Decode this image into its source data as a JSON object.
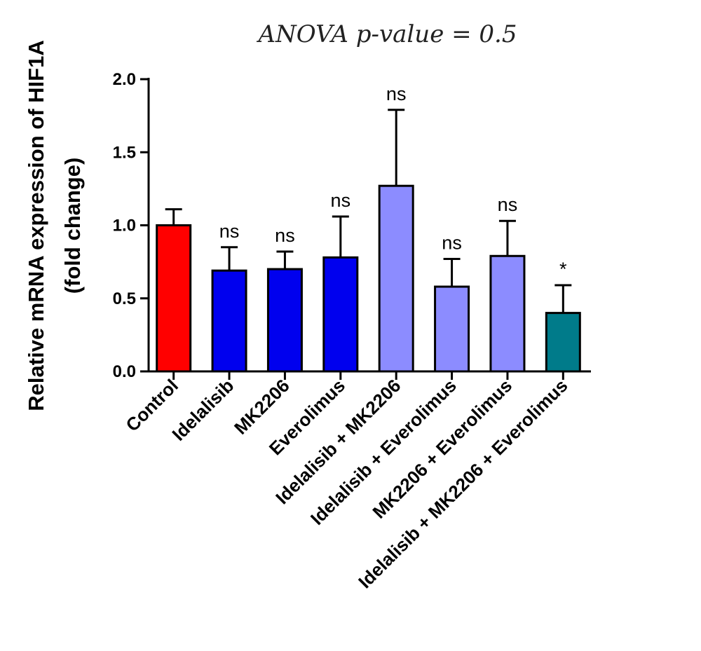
{
  "chart_data": {
    "type": "bar",
    "title": "ANOVA p-value = 0.5",
    "ylabel_line1": "Relative mRNA expression of HIF1A",
    "ylabel_line2": "(fold change)",
    "xlabel": "",
    "ylim": [
      0,
      2.0
    ],
    "yticks": [
      "0.0",
      "0.5",
      "1.0",
      "1.5",
      "2.0"
    ],
    "categories": [
      "Control",
      "Idelalisib",
      "MK2206",
      "Everolimus",
      "Idelalisib + MK2206",
      "Idelalisib + Everolimus",
      "MK2206 + Everolimus",
      "Idelalisib + MK2206 + Everolimus"
    ],
    "values": [
      1.0,
      0.69,
      0.7,
      0.78,
      1.27,
      0.58,
      0.79,
      0.4
    ],
    "error_upper": [
      0.11,
      0.16,
      0.12,
      0.28,
      0.52,
      0.19,
      0.24,
      0.19
    ],
    "significance": [
      "",
      "ns",
      "ns",
      "ns",
      "ns",
      "ns",
      "ns",
      "*"
    ],
    "colors": [
      "#ff0000",
      "#0000ee",
      "#0000ee",
      "#0000ee",
      "#8c8cff",
      "#8c8cff",
      "#8c8cff",
      "#007b8a"
    ],
    "grid": false,
    "legend": "none"
  }
}
